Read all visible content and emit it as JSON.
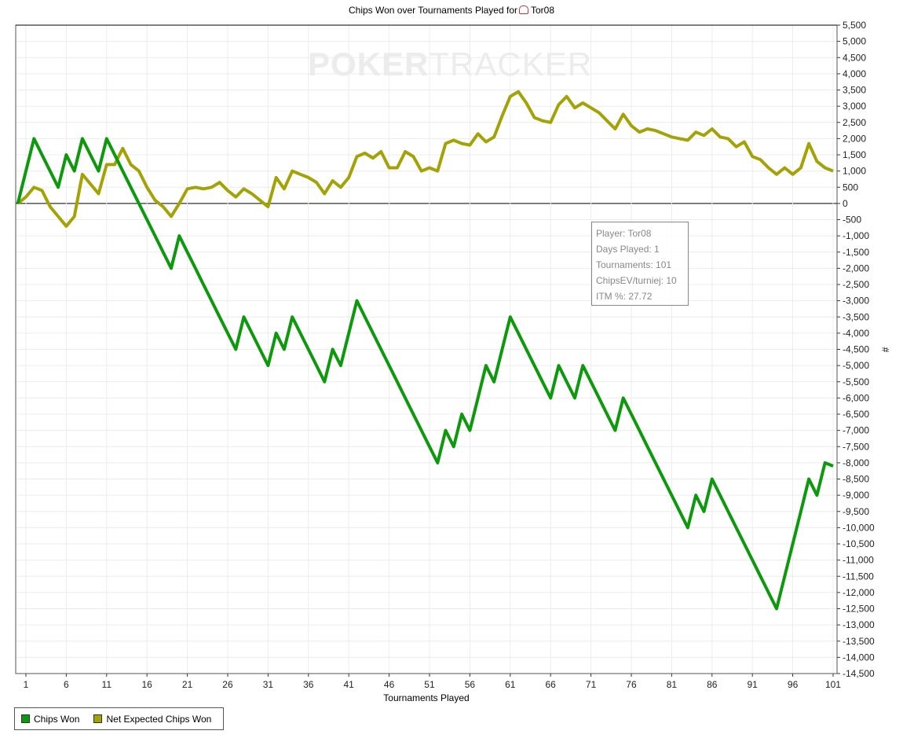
{
  "colors": {
    "chips_won": "#0c9a0c",
    "net_expected": "#a3a307",
    "grid": "#ececec"
  },
  "tooltip": {
    "lines": [
      "Player: Tor08",
      "Days Played: 1",
      "Tournaments: 101",
      "ChipsEV/turniej: 10",
      "ITM %: 27.72"
    ]
  },
  "watermark": {
    "bold": "POKER",
    "thin": "TRACKER"
  },
  "chart_data": {
    "type": "line",
    "title": "Chips Won over Tournaments Played for",
    "player": "Tor08",
    "xlabel": "Tournaments Played",
    "ylabel": "#",
    "xlim": [
      0,
      101
    ],
    "ylim": [
      -14500,
      5500
    ],
    "grid": true,
    "legend_position": "bottom-left",
    "x_ticks": [
      1,
      6,
      11,
      16,
      21,
      26,
      31,
      36,
      41,
      46,
      51,
      56,
      61,
      66,
      71,
      76,
      81,
      86,
      91,
      96,
      101
    ],
    "y_tick_step": 500,
    "x": [
      0,
      1,
      2,
      3,
      4,
      5,
      6,
      7,
      8,
      9,
      10,
      11,
      12,
      13,
      14,
      15,
      16,
      17,
      18,
      19,
      20,
      21,
      22,
      23,
      24,
      25,
      26,
      27,
      28,
      29,
      30,
      31,
      32,
      33,
      34,
      35,
      36,
      37,
      38,
      39,
      40,
      41,
      42,
      43,
      44,
      45,
      46,
      47,
      48,
      49,
      50,
      51,
      52,
      53,
      54,
      55,
      56,
      57,
      58,
      59,
      60,
      61,
      62,
      63,
      64,
      65,
      66,
      67,
      68,
      69,
      70,
      71,
      72,
      73,
      74,
      75,
      76,
      77,
      78,
      79,
      80,
      81,
      82,
      83,
      84,
      85,
      86,
      87,
      88,
      89,
      90,
      91,
      92,
      93,
      94,
      95,
      96,
      97,
      98,
      99,
      100,
      101
    ],
    "series": [
      {
        "name": "Chips Won",
        "values": [
          0,
          1000,
          2000,
          1500,
          1000,
          500,
          1500,
          1000,
          2000,
          1500,
          1000,
          2000,
          1500,
          1000,
          500,
          0,
          -500,
          -1000,
          -1500,
          -2000,
          -1000,
          -1500,
          -2000,
          -2500,
          -3000,
          -3500,
          -4000,
          -4500,
          -3500,
          -4000,
          -4500,
          -5000,
          -4000,
          -4500,
          -3500,
          -4000,
          -4500,
          -5000,
          -5500,
          -4500,
          -5000,
          -4000,
          -3000,
          -3500,
          -4000,
          -4500,
          -5000,
          -5500,
          -6000,
          -6500,
          -7000,
          -7500,
          -8000,
          -7000,
          -7500,
          -6500,
          -7000,
          -6000,
          -5000,
          -5500,
          -4500,
          -3500,
          -4000,
          -4500,
          -5000,
          -5500,
          -6000,
          -5000,
          -5500,
          -6000,
          -5000,
          -5500,
          -6000,
          -6500,
          -7000,
          -6000,
          -6500,
          -7000,
          -7500,
          -8000,
          -8500,
          -9000,
          -9500,
          -10000,
          -9000,
          -9500,
          -8500,
          -9000,
          -9500,
          -10000,
          -10500,
          -11000,
          -11500,
          -12000,
          -12500,
          -11500,
          -10500,
          -9500,
          -8500,
          -9000,
          -8000,
          -8100
        ]
      },
      {
        "name": "Net Expected Chips Won",
        "values": [
          0,
          200,
          500,
          400,
          -100,
          -400,
          -700,
          -400,
          900,
          600,
          300,
          1200,
          1200,
          1700,
          1200,
          1000,
          500,
          100,
          -100,
          -400,
          0,
          450,
          500,
          450,
          500,
          650,
          400,
          200,
          450,
          300,
          100,
          -100,
          800,
          450,
          1000,
          900,
          800,
          650,
          300,
          700,
          500,
          800,
          1450,
          1550,
          1400,
          1600,
          1100,
          1100,
          1600,
          1450,
          1000,
          1100,
          1000,
          1850,
          1950,
          1850,
          1800,
          2150,
          1900,
          2050,
          2700,
          3300,
          3450,
          3100,
          2650,
          2550,
          2500,
          3050,
          3300,
          2950,
          3100,
          2950,
          2800,
          2550,
          2300,
          2750,
          2400,
          2200,
          2300,
          2250,
          2150,
          2050,
          2000,
          1950,
          2200,
          2100,
          2300,
          2050,
          2000,
          1750,
          1900,
          1450,
          1350,
          1100,
          900,
          1100,
          900,
          1100,
          1850,
          1300,
          1100,
          1000
        ]
      }
    ]
  }
}
